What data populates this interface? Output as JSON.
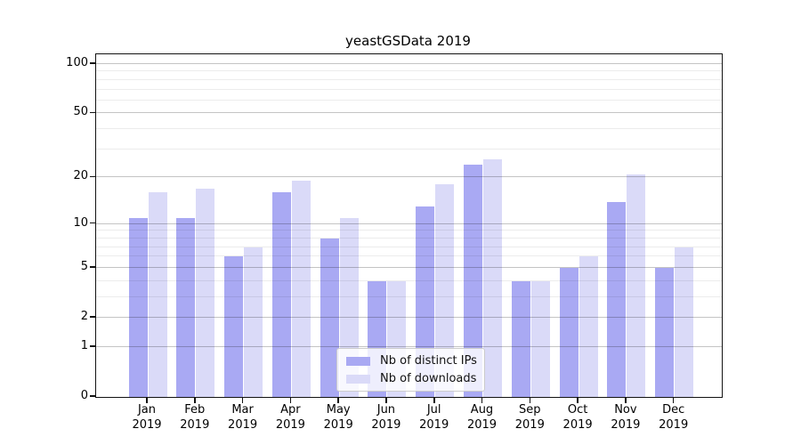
{
  "title": "yeastGSData 2019",
  "colors": {
    "bar_distinct_ips": "#a9a9f3",
    "bar_downloads": "#dadaf8",
    "axis": "#121212",
    "grid_major": "#c4c4c4",
    "grid_minor": "#ececec",
    "background": "#ffffff"
  },
  "legend": {
    "items": [
      {
        "label": "Nb of distinct IPs",
        "color": "#a9a9f3"
      },
      {
        "label": "Nb of downloads",
        "color": "#dadaf8"
      }
    ]
  },
  "chart_data": {
    "type": "bar",
    "title": "yeastGSData 2019",
    "categories": [
      "Jan",
      "Feb",
      "Mar",
      "Apr",
      "May",
      "Jun",
      "Jul",
      "Aug",
      "Sep",
      "Oct",
      "Nov",
      "Dec"
    ],
    "year_label": "2019",
    "series": [
      {
        "name": "Nb of distinct IPs",
        "color": "#a9a9f3",
        "values": [
          11,
          11,
          6,
          16,
          8,
          4,
          13,
          24,
          4,
          5,
          14,
          5
        ]
      },
      {
        "name": "Nb of downloads",
        "color": "#dadaf8",
        "values": [
          16,
          17,
          7,
          19,
          11,
          4,
          18,
          26,
          4,
          6,
          21,
          7
        ]
      }
    ],
    "xlabel": "",
    "ylabel": "",
    "y_scale": "log1p",
    "y_ticks": [
      0,
      1,
      2,
      5,
      10,
      20,
      50,
      100
    ],
    "y_minor_ticks": [
      3,
      4,
      6,
      7,
      8,
      9,
      30,
      40,
      60,
      70,
      80,
      90
    ],
    "ylim": [
      0,
      115
    ],
    "grid": "horizontal",
    "legend_position": "lower center"
  }
}
